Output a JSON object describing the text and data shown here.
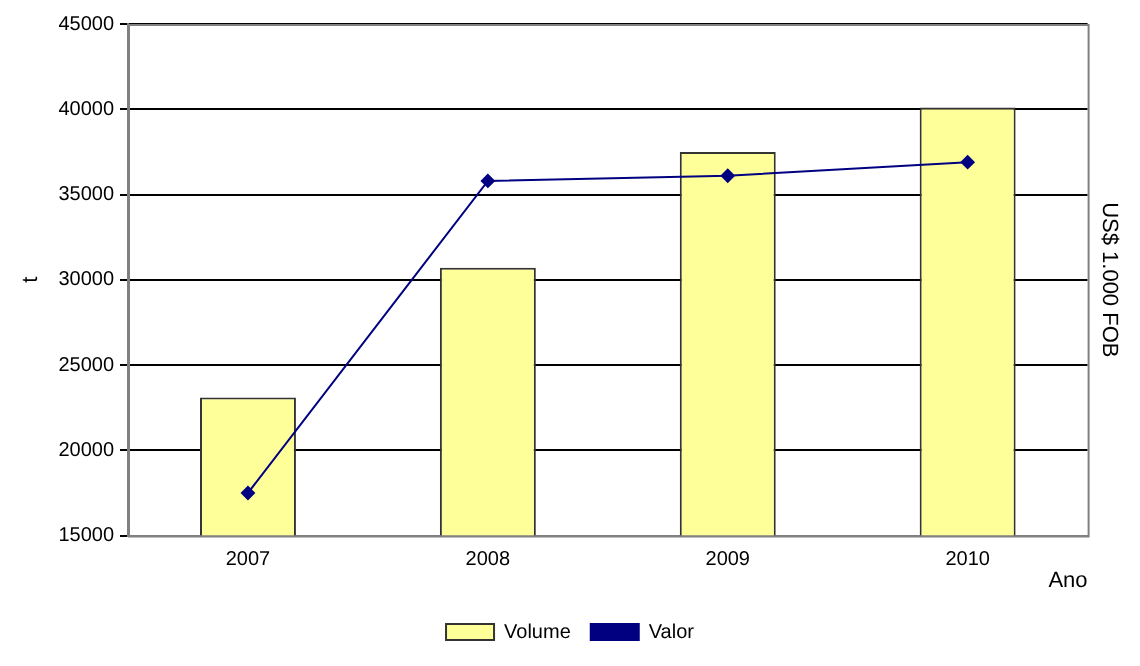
{
  "chart_data": {
    "type": "bar",
    "categories": [
      "2007",
      "2008",
      "2009",
      "2010"
    ],
    "xlabel": "Ano",
    "ylabel": "t",
    "y2label": "US$ 1.000 FOB",
    "series": [
      {
        "name": "Volume",
        "color": "#ffff99",
        "values": [
          23100,
          30700,
          37500,
          40100
        ]
      },
      {
        "name": "Valor",
        "type": "line",
        "color": "#000080",
        "marker": "diamond",
        "values": [
          17500,
          35800,
          36100,
          36900
        ]
      }
    ],
    "ylim": [
      15000,
      45000
    ],
    "yticks": [
      15000,
      20000,
      25000,
      30000,
      35000,
      40000,
      45000
    ],
    "grid": "y",
    "legend": "bottom"
  }
}
